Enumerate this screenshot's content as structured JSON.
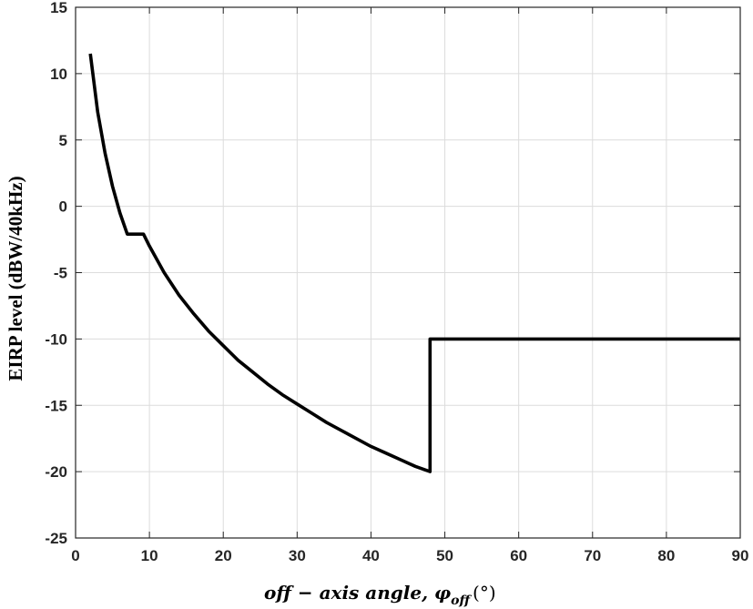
{
  "chart_data": {
    "type": "line",
    "title": "",
    "xlabel": {
      "main": "off − axis angle, φ",
      "subscript": "off",
      "unit": "(°)"
    },
    "ylabel": "EIRP level (dBW/40kHz)",
    "xlim": [
      0,
      90
    ],
    "ylim": [
      -25,
      15
    ],
    "xticks": [
      0,
      10,
      20,
      30,
      40,
      50,
      60,
      70,
      80,
      90
    ],
    "yticks": [
      -25,
      -20,
      -15,
      -10,
      -5,
      0,
      5,
      10,
      15
    ],
    "grid": true,
    "legend": "none",
    "series": [
      {
        "color": "#000000",
        "x": [
          2,
          3,
          4,
          5,
          6,
          7,
          9.2,
          10,
          12,
          14,
          16,
          18,
          20,
          22,
          24,
          26,
          28,
          30,
          32,
          34,
          36,
          38,
          40,
          42,
          44,
          46,
          48,
          48,
          50,
          60,
          70,
          80,
          90
        ],
        "y": [
          11.5,
          7.1,
          4.0,
          1.5,
          -0.5,
          -2.1,
          -2.1,
          -3.0,
          -5.0,
          -6.7,
          -8.1,
          -9.4,
          -10.5,
          -11.6,
          -12.5,
          -13.4,
          -14.2,
          -14.9,
          -15.6,
          -16.3,
          -16.9,
          -17.5,
          -18.1,
          -18.6,
          -19.1,
          -19.6,
          -20.0,
          -10,
          -10,
          -10,
          -10,
          -10,
          -10
        ]
      }
    ]
  }
}
